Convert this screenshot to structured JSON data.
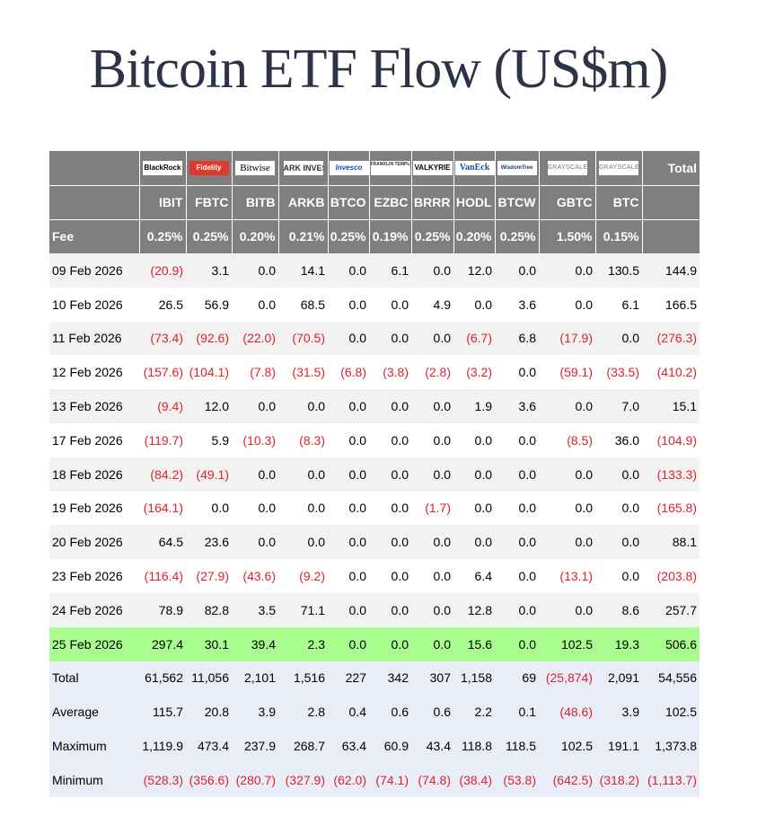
{
  "title": "Bitcoin ETF Flow (US$m)",
  "header": {
    "total_label": "Total",
    "fee_label": "Fee",
    "logos": [
      "BlackRock",
      "Fidelity",
      "Bitwise",
      "ARK INVEST",
      "Invesco",
      "FRANKLIN TEMPLETON",
      "VALKYRIE",
      "VanEck",
      "WisdomTree",
      "GRAYSCALE",
      "GRAYSCALE"
    ],
    "tickers": [
      "IBIT",
      "FBTC",
      "BITB",
      "ARKB",
      "BTCO",
      "EZBC",
      "BRRR",
      "HODL",
      "BTCW",
      "GBTC",
      "BTC"
    ],
    "fees": [
      "0.25%",
      "0.25%",
      "0.20%",
      "0.21%",
      "0.25%",
      "0.19%",
      "0.25%",
      "0.20%",
      "0.25%",
      "1.50%",
      "0.15%"
    ]
  },
  "rows": [
    {
      "date": "09 Feb 2026",
      "values": [
        "(20.9)",
        "3.1",
        "0.0",
        "14.1",
        "0.0",
        "6.1",
        "0.0",
        "12.0",
        "0.0",
        "0.0",
        "130.5"
      ],
      "total": "144.9"
    },
    {
      "date": "10 Feb 2026",
      "values": [
        "26.5",
        "56.9",
        "0.0",
        "68.5",
        "0.0",
        "0.0",
        "4.9",
        "0.0",
        "3.6",
        "0.0",
        "6.1"
      ],
      "total": "166.5"
    },
    {
      "date": "11 Feb 2026",
      "values": [
        "(73.4)",
        "(92.6)",
        "(22.0)",
        "(70.5)",
        "0.0",
        "0.0",
        "0.0",
        "(6.7)",
        "6.8",
        "(17.9)",
        "0.0"
      ],
      "total": "(276.3)"
    },
    {
      "date": "12 Feb 2026",
      "values": [
        "(157.6)",
        "(104.1)",
        "(7.8)",
        "(31.5)",
        "(6.8)",
        "(3.8)",
        "(2.8)",
        "(3.2)",
        "0.0",
        "(59.1)",
        "(33.5)"
      ],
      "total": "(410.2)"
    },
    {
      "date": "13 Feb 2026",
      "values": [
        "(9.4)",
        "12.0",
        "0.0",
        "0.0",
        "0.0",
        "0.0",
        "0.0",
        "1.9",
        "3.6",
        "0.0",
        "7.0"
      ],
      "total": "15.1"
    },
    {
      "date": "17 Feb 2026",
      "values": [
        "(119.7)",
        "5.9",
        "(10.3)",
        "(8.3)",
        "0.0",
        "0.0",
        "0.0",
        "0.0",
        "0.0",
        "(8.5)",
        "36.0"
      ],
      "total": "(104.9)"
    },
    {
      "date": "18 Feb 2026",
      "values": [
        "(84.2)",
        "(49.1)",
        "0.0",
        "0.0",
        "0.0",
        "0.0",
        "0.0",
        "0.0",
        "0.0",
        "0.0",
        "0.0"
      ],
      "total": "(133.3)"
    },
    {
      "date": "19 Feb 2026",
      "values": [
        "(164.1)",
        "0.0",
        "0.0",
        "0.0",
        "0.0",
        "0.0",
        "(1.7)",
        "0.0",
        "0.0",
        "0.0",
        "0.0"
      ],
      "total": "(165.8)"
    },
    {
      "date": "20 Feb 2026",
      "values": [
        "64.5",
        "23.6",
        "0.0",
        "0.0",
        "0.0",
        "0.0",
        "0.0",
        "0.0",
        "0.0",
        "0.0",
        "0.0"
      ],
      "total": "88.1"
    },
    {
      "date": "23 Feb 2026",
      "values": [
        "(116.4)",
        "(27.9)",
        "(43.6)",
        "(9.2)",
        "0.0",
        "0.0",
        "0.0",
        "6.4",
        "0.0",
        "(13.1)",
        "0.0"
      ],
      "total": "(203.8)"
    },
    {
      "date": "24 Feb 2026",
      "values": [
        "78.9",
        "82.8",
        "3.5",
        "71.1",
        "0.0",
        "0.0",
        "0.0",
        "12.8",
        "0.0",
        "0.0",
        "8.6"
      ],
      "total": "257.7"
    },
    {
      "date": "25 Feb 2026",
      "values": [
        "297.4",
        "30.1",
        "39.4",
        "2.3",
        "0.0",
        "0.0",
        "0.0",
        "15.6",
        "0.0",
        "102.5",
        "19.3"
      ],
      "total": "506.6",
      "highlight": true
    }
  ],
  "stats": [
    {
      "label": "Total",
      "values": [
        "61,562",
        "11,056",
        "2,101",
        "1,516",
        "227",
        "342",
        "307",
        "1,158",
        "69",
        "(25,874)",
        "2,091"
      ],
      "total": "54,556"
    },
    {
      "label": "Average",
      "values": [
        "115.7",
        "20.8",
        "3.9",
        "2.8",
        "0.4",
        "0.6",
        "0.6",
        "2.2",
        "0.1",
        "(48.6)",
        "3.9"
      ],
      "total": "102.5"
    },
    {
      "label": "Maximum",
      "values": [
        "1,119.9",
        "473.4",
        "237.9",
        "268.7",
        "63.4",
        "60.9",
        "43.4",
        "118.8",
        "118.5",
        "102.5",
        "191.1"
      ],
      "total": "1,373.8"
    },
    {
      "label": "Minimum",
      "values": [
        "(528.3)",
        "(356.6)",
        "(280.7)",
        "(327.9)",
        "(62.0)",
        "(74.1)",
        "(74.8)",
        "(38.4)",
        "(53.8)",
        "(642.5)",
        "(318.2)"
      ],
      "total": "(1,113.7)"
    }
  ],
  "colors": {
    "header_bg": "#7f7f7f",
    "negative": "#e0202c",
    "highlight_row": "#a9fd8e",
    "stats_bg": "#e9edf7",
    "stripe": "#f2f2f2"
  }
}
